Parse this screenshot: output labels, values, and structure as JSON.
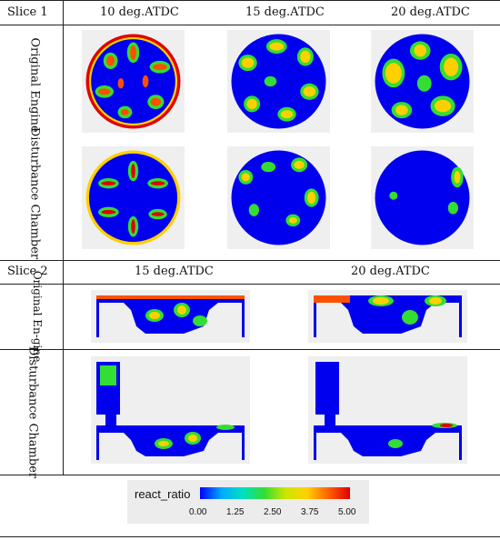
{
  "slice1": {
    "label": "Slice 1",
    "columns": [
      "10 deg.ATDC",
      "15 deg.ATDC",
      "20 deg.ATDC"
    ],
    "rows": [
      "Original Engine",
      "Disturbance Chamber"
    ]
  },
  "slice2": {
    "label": "Slice 2",
    "columns": [
      "15 deg.ATDC",
      "20 deg.ATDC"
    ],
    "rows": [
      "Original En-gine",
      "Disturbance Chamber"
    ]
  },
  "legend": {
    "title": "react_ratio",
    "ticks": [
      "0.00",
      "1.25",
      "2.50",
      "3.75",
      "5.00"
    ],
    "colors": [
      "#0000ff",
      "#00aaff",
      "#00e0c0",
      "#33dd33",
      "#cfe600",
      "#ffd000",
      "#ff6000",
      "#e00000"
    ]
  }
}
